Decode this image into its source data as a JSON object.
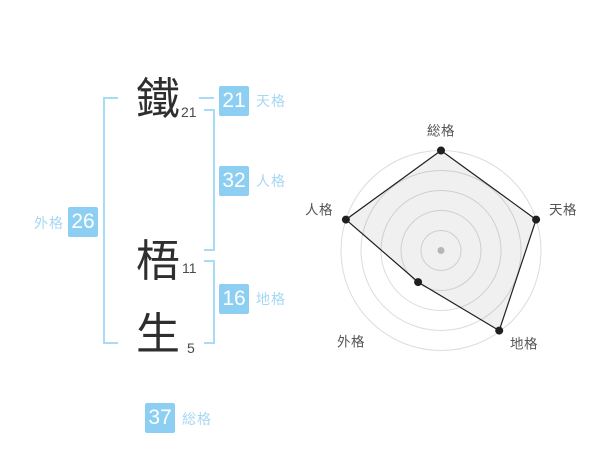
{
  "name_diagram": {
    "characters": [
      {
        "char": "鐵",
        "strokes": "21"
      },
      {
        "char": "梧",
        "strokes": "11"
      },
      {
        "char": "生",
        "strokes": "5"
      }
    ],
    "categories": {
      "tenkaku": {
        "value": "21",
        "label": "天格"
      },
      "jinkaku": {
        "value": "32",
        "label": "人格"
      },
      "chikaku": {
        "value": "16",
        "label": "地格"
      },
      "gaikaku": {
        "value": "26",
        "label": "外格"
      },
      "soukaku": {
        "value": "37",
        "label": "総格"
      }
    },
    "colors": {
      "box_bg": "#8dcff2",
      "box_text": "#ffffff",
      "label_text": "#a5d8f3",
      "bracket": "#a8dbf6",
      "char_text": "#2e2e2e",
      "stroke_text": "#4a4a4a"
    }
  },
  "chart_data": {
    "type": "radar",
    "categories": [
      "総格",
      "天格",
      "地格",
      "外格",
      "人格"
    ],
    "axis_keys": [
      "soukaku",
      "tenkaku",
      "chikaku",
      "gaikaku",
      "jinkaku"
    ],
    "values": [
      100,
      100,
      99,
      39,
      100
    ],
    "max": 100,
    "ring_count": 5,
    "ring_step": 20,
    "grid": "concentric-circles",
    "legend": "none",
    "colors": {
      "ring": "#dcdcdc",
      "polygon_stroke": "#1f1f1f",
      "polygon_fill": "rgba(0,0,0,0.06)",
      "point": "#1f1f1f",
      "center_dot": "#c2c2c2",
      "label": "#555555"
    }
  }
}
